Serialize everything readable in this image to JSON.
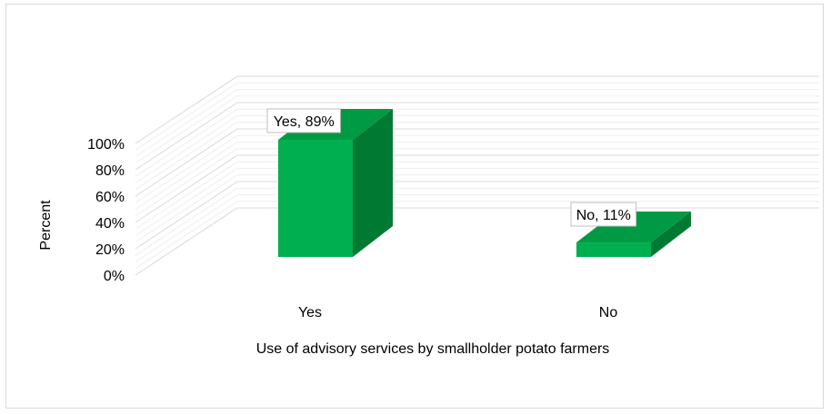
{
  "chart_data": {
    "type": "bar",
    "categories": [
      "Yes",
      "No"
    ],
    "values": [
      89,
      11
    ],
    "data_labels": [
      "Yes, 89%",
      "No, 11%"
    ],
    "xlabel": "Use of advisory services by smallholder potato farmers",
    "ylabel": "Percent",
    "yticks": [
      "0%",
      "20%",
      "40%",
      "60%",
      "80%",
      "100%"
    ],
    "ylim": [
      0,
      100
    ],
    "grid": true,
    "legend": "none",
    "colors": {
      "bar_front": "#00b050",
      "bar_side": "#007a33",
      "bar_top": "#009a44",
      "grid": "#d9d9d9"
    }
  }
}
